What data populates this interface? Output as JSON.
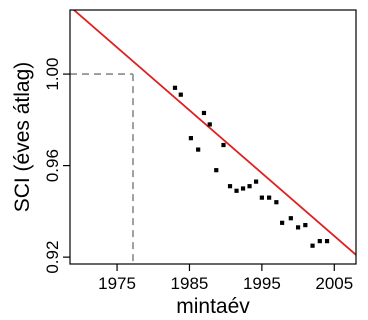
{
  "chart_data": {
    "type": "scatter",
    "title": "",
    "xlabel": "mintaév",
    "ylabel": "SCI (éves átlag)",
    "xlim": [
      1968.5,
      2008
    ],
    "ylim": [
      0.917,
      1.028
    ],
    "x_ticks": [
      1975,
      1985,
      1995,
      2005
    ],
    "x_tick_labels": [
      "1975",
      "1985",
      "1995",
      "2005"
    ],
    "y_ticks": [
      0.92,
      0.96,
      1.0
    ],
    "y_tick_labels": [
      "0.92",
      "0.96",
      "1.00"
    ],
    "grid": false,
    "legend": "none",
    "points": [
      {
        "x": 1983.0,
        "y": 0.994
      },
      {
        "x": 1983.8,
        "y": 0.991
      },
      {
        "x": 1985.2,
        "y": 0.972
      },
      {
        "x": 1986.2,
        "y": 0.967
      },
      {
        "x": 1987.0,
        "y": 0.983
      },
      {
        "x": 1987.8,
        "y": 0.978
      },
      {
        "x": 1988.7,
        "y": 0.958
      },
      {
        "x": 1989.7,
        "y": 0.969
      },
      {
        "x": 1990.6,
        "y": 0.951
      },
      {
        "x": 1991.5,
        "y": 0.949
      },
      {
        "x": 1992.4,
        "y": 0.95
      },
      {
        "x": 1993.3,
        "y": 0.951
      },
      {
        "x": 1994.2,
        "y": 0.953
      },
      {
        "x": 1995.0,
        "y": 0.946
      },
      {
        "x": 1996.0,
        "y": 0.946
      },
      {
        "x": 1997.0,
        "y": 0.944
      },
      {
        "x": 1997.8,
        "y": 0.935
      },
      {
        "x": 1999.0,
        "y": 0.937
      },
      {
        "x": 2000.0,
        "y": 0.933
      },
      {
        "x": 2001.0,
        "y": 0.934
      },
      {
        "x": 2002.0,
        "y": 0.925
      },
      {
        "x": 2003.0,
        "y": 0.927
      },
      {
        "x": 2004.0,
        "y": 0.927
      }
    ],
    "fit_line": {
      "x": [
        1968.5,
        2008
      ],
      "y": [
        1.0295,
        0.921
      ],
      "color": "#e02020"
    },
    "reference_lines": {
      "x": 1977.2,
      "y": 1.0,
      "color": "#8a8a8a",
      "style": "dashed"
    },
    "colors": {
      "points": "#000000",
      "fit": "#e02020",
      "reference": "#8a8a8a"
    }
  }
}
